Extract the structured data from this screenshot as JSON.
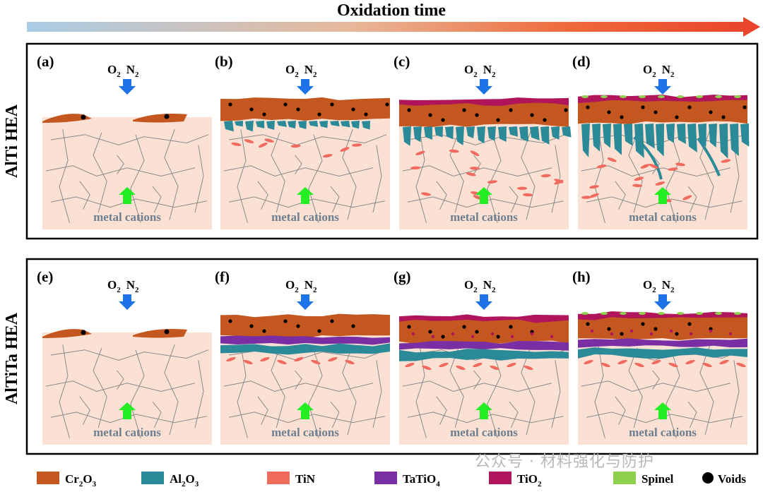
{
  "header": {
    "title": "Oxidation time",
    "arrow_gradient": [
      "#a9cde6",
      "#e8b89a",
      "#ef6a3a",
      "#e8452a"
    ]
  },
  "rows": [
    {
      "label": "AlTi  HEA",
      "panels": [
        {
          "id": "(a)",
          "gases": {
            "o": "O",
            "o_sub": "2",
            "n": "N",
            "n_sub": "2"
          },
          "caption": "metal cations"
        },
        {
          "id": "(b)",
          "gases": {
            "o": "O",
            "o_sub": "2",
            "n": "N",
            "n_sub": "2"
          },
          "caption": "metal cations"
        },
        {
          "id": "(c)",
          "gases": {
            "o": "O",
            "o_sub": "2",
            "n": "N",
            "n_sub": "2"
          },
          "caption": "metal cations"
        },
        {
          "id": "(d)",
          "gases": {
            "o": "O",
            "o_sub": "2",
            "n": "N",
            "n_sub": "2"
          },
          "caption": "metal cations"
        }
      ]
    },
    {
      "label": "AlTiTa  HEA",
      "panels": [
        {
          "id": "(e)",
          "gases": {
            "o": "O",
            "o_sub": "2",
            "n": "N",
            "n_sub": "2"
          },
          "caption": "metal cations"
        },
        {
          "id": "(f)",
          "gases": {
            "o": "O",
            "o_sub": "2",
            "n": "N",
            "n_sub": "2"
          },
          "caption": "metal cations"
        },
        {
          "id": "(g)",
          "gases": {
            "o": "O",
            "o_sub": "2",
            "n": "N",
            "n_sub": "2"
          },
          "caption": "metal cations"
        },
        {
          "id": "(h)",
          "gases": {
            "o": "O",
            "o_sub": "2",
            "n": "N",
            "n_sub": "2"
          },
          "caption": "metal cations"
        }
      ]
    }
  ],
  "legend": [
    {
      "key": "cr2o3",
      "parts": [
        "Cr",
        "2",
        "O",
        "3"
      ],
      "color": "#c4561f",
      "shape": "rect"
    },
    {
      "key": "al2o3",
      "parts": [
        "Al",
        "2",
        "O",
        "3"
      ],
      "color": "#2a8a98",
      "shape": "rect"
    },
    {
      "key": "tin",
      "parts": [
        "TiN"
      ],
      "color": "#f06a5e",
      "shape": "rect"
    },
    {
      "key": "tatio4",
      "parts": [
        "TaTiO",
        "4"
      ],
      "color": "#7a2ea3",
      "shape": "rect"
    },
    {
      "key": "tio2",
      "parts": [
        "TiO",
        "2"
      ],
      "color": "#b0145a",
      "shape": "rect"
    },
    {
      "key": "spinel",
      "parts": [
        "Spinel"
      ],
      "color": "#8fd14f",
      "shape": "rect"
    },
    {
      "key": "voids",
      "parts": [
        "Voids"
      ],
      "color": "#000000",
      "shape": "dot"
    }
  ],
  "watermark": "公众号 · 材料强化与防护",
  "colors": {
    "substrate": "#fbe1d4",
    "grain": "#8a8a8a",
    "gas_arrow": "#1e73e8",
    "cation_arrow": "#22ee22"
  }
}
